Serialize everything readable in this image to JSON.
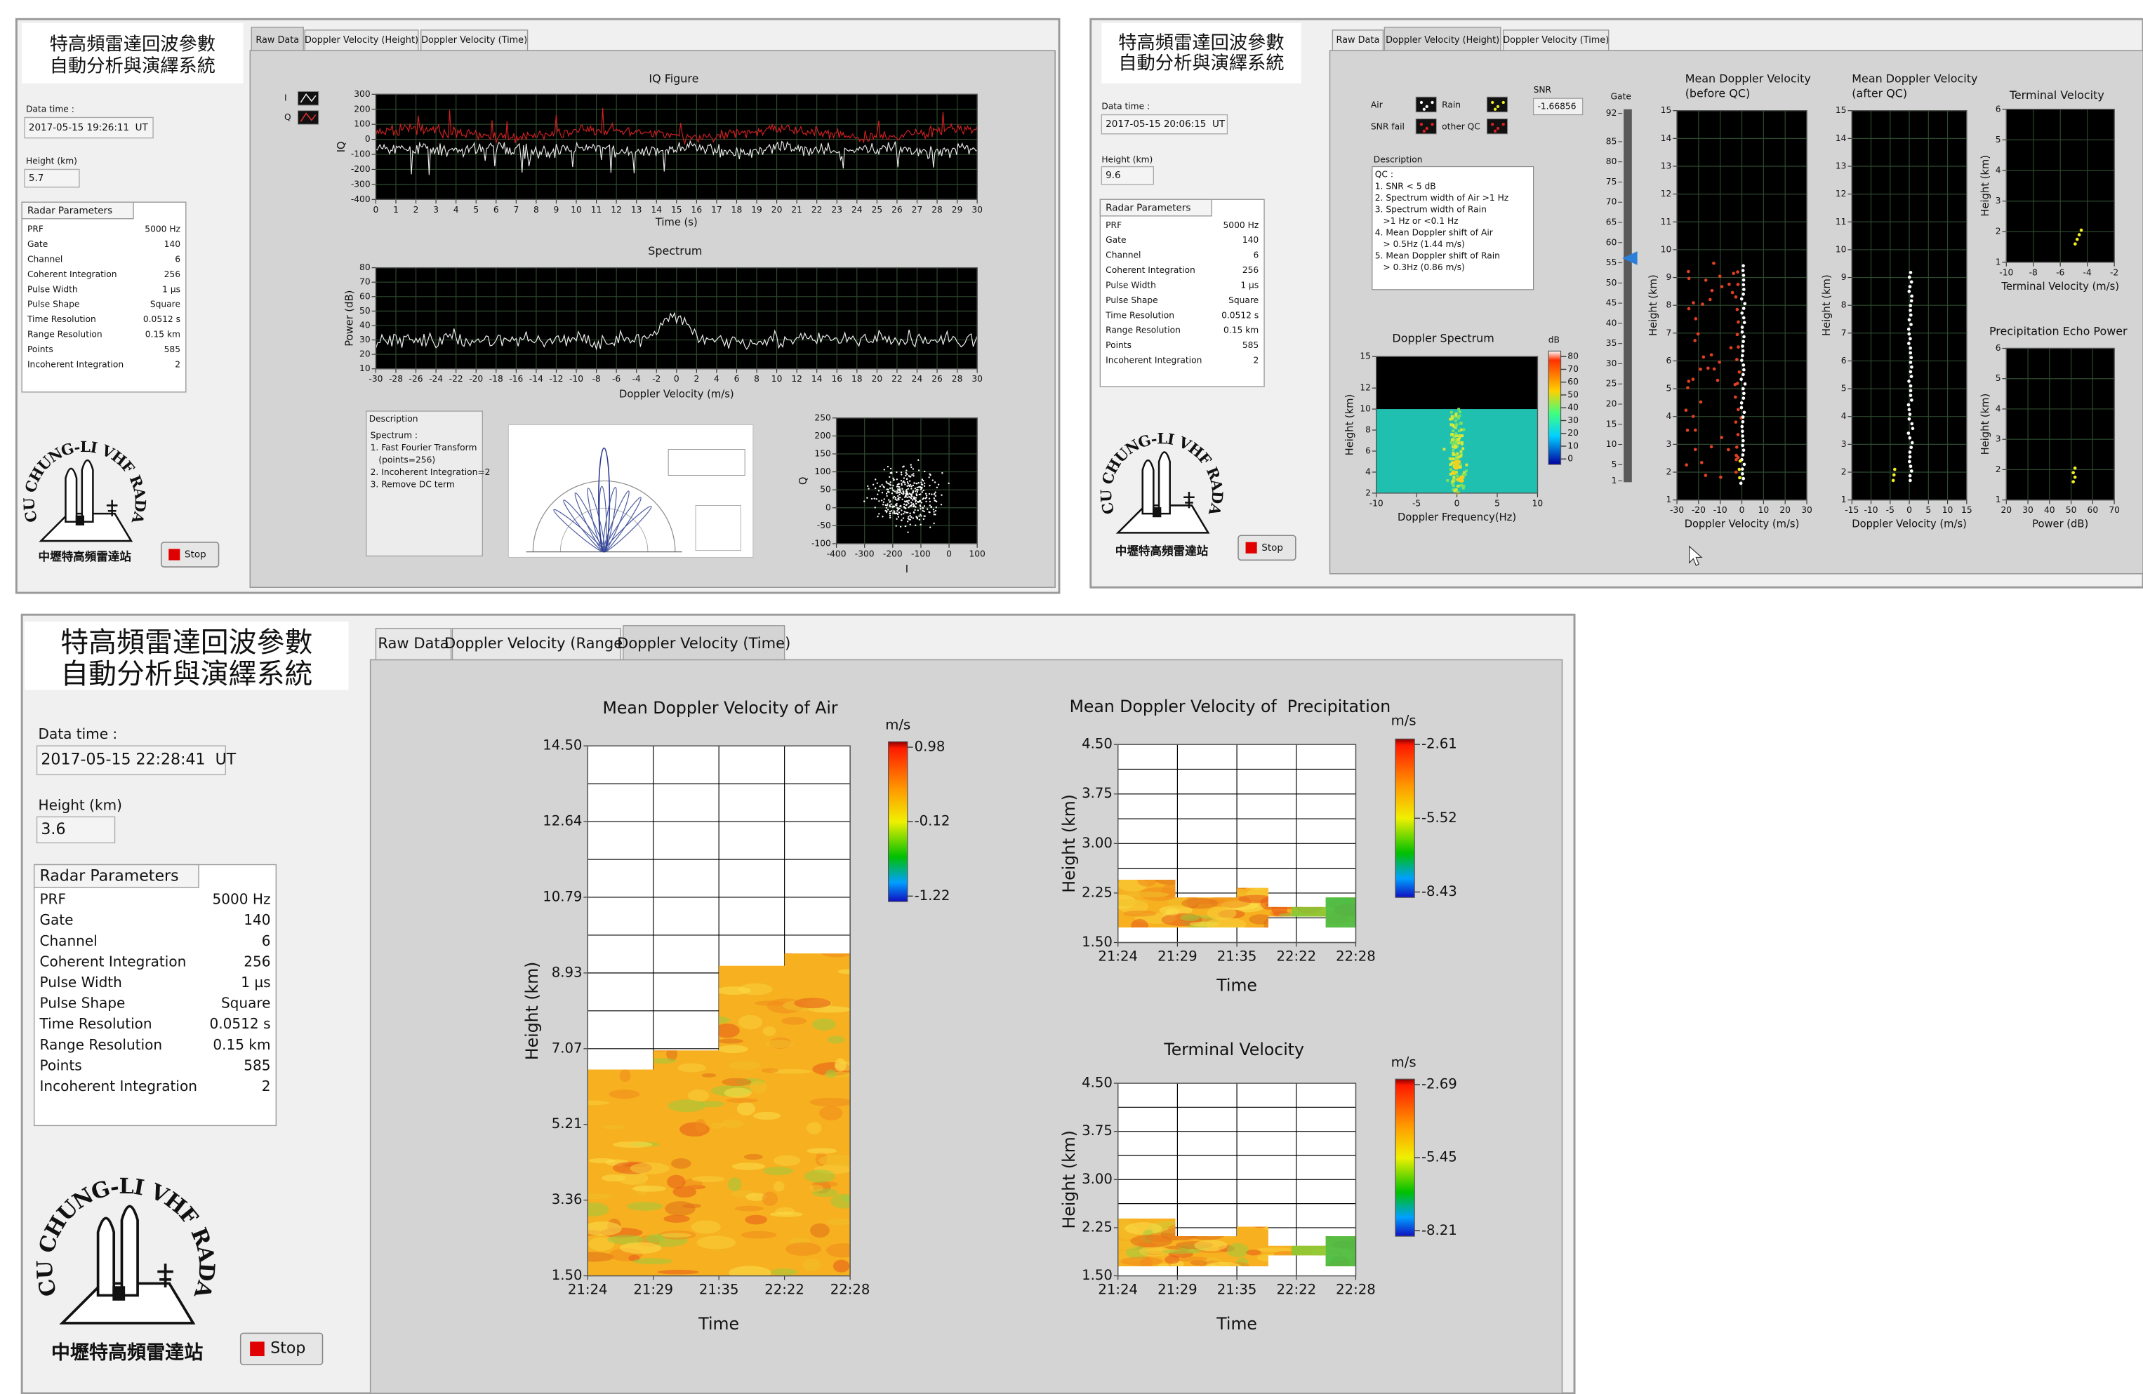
{
  "system_title": [
    "特高頻雷達回波參數",
    "自動分析與演繹系統"
  ],
  "date_label": "Data time :",
  "height_label": "Height (km)",
  "radar_parameters": {
    "title": "Radar Parameters",
    "rows": [
      [
        "PRF",
        "5000 Hz"
      ],
      [
        "Gate",
        "140"
      ],
      [
        "Channel",
        "6"
      ],
      [
        "Coherent Integration",
        "256"
      ],
      [
        "Pulse Width",
        "1 µs"
      ],
      [
        "Pulse Shape",
        "Square"
      ],
      [
        "Time Resolution",
        "0.0512 s"
      ],
      [
        "Range Resolution",
        "0.15 km"
      ],
      [
        "Points",
        "585"
      ],
      [
        "Incoherent Integration",
        "2"
      ]
    ]
  },
  "logo_text": "NCU CHUNG-LI VHF RADAR",
  "station": "中壢特高頻雷達站",
  "stop": "Stop",
  "panels": [
    {
      "tabs": [
        "Raw Data",
        "Doppler Velocity (Height)",
        "Doppler Velocity (Time)"
      ],
      "date_value": "2017-05-15 19:26:11  UT",
      "height_value": "5.7",
      "iq_legend": [
        "I",
        "Q"
      ],
      "description": {
        "label": "Description",
        "lines": [
          "Spectrum :",
          "1. Fast Fourier Transform",
          "   (points=256)",
          "2. Incoherent Integration=2",
          "3. Remove DC term"
        ]
      },
      "plots": [
        {
          "title": "IQ Figure",
          "xlabel": "Time (s)",
          "ylabel": "IQ",
          "xticks": [
            0,
            1,
            2,
            3,
            4,
            5,
            6,
            7,
            8,
            9,
            10,
            11,
            12,
            13,
            14,
            15,
            16,
            17,
            18,
            19,
            20,
            21,
            22,
            23,
            24,
            25,
            26,
            27,
            28,
            29,
            30
          ],
          "yticks": [
            -400,
            -300,
            -200,
            -100,
            0,
            100,
            200,
            300
          ]
        },
        {
          "title": "Spectrum",
          "xlabel": "Doppler Velocity (m/s)",
          "ylabel": "Power (dB)",
          "xticks": [
            -30,
            -28,
            -26,
            -24,
            -22,
            -20,
            -18,
            -16,
            -14,
            -12,
            -10,
            -8,
            -6,
            -4,
            -2,
            0,
            2,
            4,
            6,
            8,
            10,
            12,
            14,
            16,
            18,
            20,
            22,
            24,
            26,
            28,
            30
          ],
          "yticks": [
            10,
            20,
            30,
            40,
            50,
            60,
            70,
            80
          ]
        },
        {
          "xlabel": "I",
          "ylabel": "Q",
          "xticks": [
            -400,
            -300,
            -200,
            -100,
            0,
            100
          ],
          "yticks": [
            -100,
            -50,
            0,
            50,
            100,
            150,
            200,
            250
          ]
        }
      ]
    },
    {
      "tabs": [
        "Raw Data",
        "Doppler Velocity (Height)",
        "Doppler Velocity (Time)"
      ],
      "date_value": "2017-05-15 20:06:15  UT",
      "height_value": "9.6",
      "legend": [
        "Air",
        "Rain",
        "SNR fail",
        "other QC"
      ],
      "snr": {
        "label": "SNR",
        "value": "-1.66856"
      },
      "description": {
        "label": "Description",
        "lines": [
          "QC :",
          "1. SNR < 5 dB",
          "2. Spectrum width of Air >1 Hz",
          "3. Spectrum width of Rain",
          "   >1 Hz or <0.1 Hz",
          "4. Mean Doppler shift of Air",
          "   > 0.5Hz (1.44 m/s)",
          "5. Mean Doppler shift of Rain",
          "   > 0.3Hz (0.86 m/s)"
        ]
      },
      "gate": {
        "label": "Gate",
        "ticks": [
          1,
          5,
          10,
          15,
          20,
          25,
          30,
          35,
          40,
          45,
          50,
          55,
          60,
          65,
          70,
          75,
          80,
          85,
          92
        ]
      },
      "plots": [
        {
          "title": "Doppler Spectrum",
          "xlabel": "Doppler Frequency(Hz)",
          "ylabel": "Height (km)",
          "xticks": [
            -10,
            -5,
            0,
            5,
            10
          ],
          "yticks": [
            2,
            4,
            6,
            8,
            10,
            12,
            15
          ],
          "colorbar": {
            "unit": "dB",
            "ticks": [
              80,
              70,
              60,
              50,
              40,
              30,
              20,
              10,
              0
            ]
          }
        },
        {
          "title": [
            "Mean Doppler Velocity",
            "(before QC)"
          ],
          "xlabel": "Doppler Velocity (m/s)",
          "ylabel": "Height (km)",
          "xticks": [
            -30,
            -20,
            -10,
            0,
            10,
            20,
            30
          ],
          "yticks": [
            1,
            2,
            3,
            4,
            5,
            6,
            7,
            8,
            9,
            10,
            11,
            12,
            13,
            14,
            15
          ]
        },
        {
          "title": [
            "Mean Doppler Velocity",
            "(after QC)"
          ],
          "xlabel": "Doppler Velocity (m/s)",
          "ylabel": "Height (km)",
          "xticks": [
            -15,
            -10,
            -5,
            0,
            5,
            10,
            15
          ],
          "yticks": [
            1,
            2,
            3,
            4,
            5,
            6,
            7,
            8,
            9,
            10,
            11,
            12,
            13,
            14,
            15
          ]
        },
        {
          "title": "Terminal Velocity",
          "xlabel": "Terminal Velocity (m/s)",
          "ylabel": "Height (km)",
          "xticks": [
            -10,
            -8,
            -6,
            -4,
            -2
          ],
          "yticks": [
            1,
            2,
            3,
            4,
            5,
            6
          ]
        },
        {
          "title": "Precipitation Echo Power",
          "xlabel": "Power (dB)",
          "ylabel": "Height (km)",
          "xticks": [
            20,
            30,
            40,
            50,
            60,
            70
          ],
          "yticks": [
            1,
            2,
            3,
            4,
            5,
            6
          ]
        }
      ]
    },
    {
      "tabs": [
        "Raw Data",
        "Doppler Velocity (Range)",
        "Doppler Velocity (Time)"
      ],
      "date_value": "2017-05-15 22:28:41  UT",
      "height_value": "3.6",
      "plots": [
        {
          "title": "Mean Doppler Velocity of Air",
          "xlabel": "Time",
          "ylabel": "Height (km)",
          "xticks": [
            "21:24",
            "21:29",
            "21:35",
            "22:22",
            "22:28"
          ],
          "yticks": [
            "1.50",
            "3.36",
            "5.21",
            "7.07",
            "8.93",
            "10.79",
            "12.64",
            "14.50"
          ],
          "colorbar": {
            "unit": "m/s",
            "ticks": [
              "0.98",
              "-0.12",
              "-1.22"
            ]
          }
        },
        {
          "title": "Mean Doppler Velocity of  Precipitation",
          "xlabel": "Time",
          "ylabel": "Height (km)",
          "xticks": [
            "21:24",
            "21:29",
            "21:35",
            "22:22",
            "22:28"
          ],
          "yticks": [
            "1.50",
            "2.25",
            "3.00",
            "3.75",
            "4.50"
          ],
          "colorbar": {
            "unit": "m/s",
            "ticks": [
              "-2.61",
              "-5.52",
              "-8.43"
            ]
          }
        },
        {
          "title": "Terminal Velocity",
          "xlabel": "Time",
          "ylabel": "Height (km)",
          "xticks": [
            "21:24",
            "21:29",
            "21:35",
            "22:22",
            "22:28"
          ],
          "yticks": [
            "1.50",
            "2.25",
            "3.00",
            "3.75",
            "4.50"
          ],
          "colorbar": {
            "unit": "m/s",
            "ticks": [
              "-2.69",
              "-5.45",
              "-8.21"
            ]
          }
        }
      ]
    }
  ]
}
